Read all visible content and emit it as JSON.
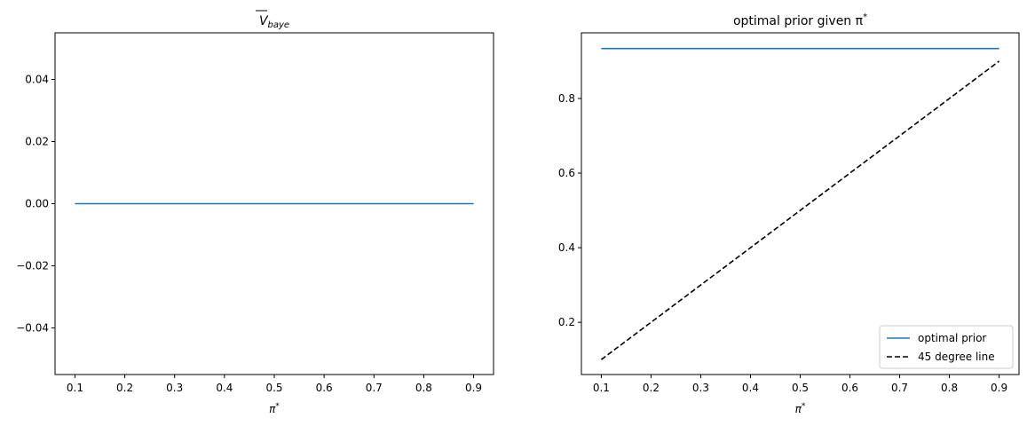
{
  "chart_data": [
    {
      "type": "line",
      "title": "V̄_baye",
      "title_main": "V",
      "title_sub": "baye",
      "xlabel": "π*",
      "xlabel_main": "π",
      "xlabel_sup": "*",
      "ylabel": "",
      "xlim": [
        0.06,
        0.94
      ],
      "ylim": [
        -0.055,
        0.055
      ],
      "xticks": [
        "0.1",
        "0.2",
        "0.3",
        "0.4",
        "0.5",
        "0.6",
        "0.7",
        "0.8",
        "0.9"
      ],
      "yticks": [
        "−0.04",
        "−0.02",
        "0.00",
        "0.02",
        "0.04"
      ],
      "ytick_values": [
        -0.04,
        -0.02,
        0,
        0.02,
        0.04
      ],
      "grid": false,
      "series": [
        {
          "color": "#1f77b4",
          "style": "solid",
          "x": [
            0.1,
            0.2,
            0.3,
            0.4,
            0.5,
            0.6,
            0.7,
            0.8,
            0.9
          ],
          "y": [
            0,
            0,
            0,
            0,
            0,
            0,
            0,
            0,
            0
          ]
        }
      ]
    },
    {
      "type": "line",
      "title": "optimal prior given π*",
      "title_main": "optimal prior given π",
      "title_sup": "*",
      "xlabel": "π*",
      "xlabel_main": "π",
      "xlabel_sup": "*",
      "ylabel": "",
      "xlim": [
        0.06,
        0.94
      ],
      "ylim": [
        0.06,
        0.976
      ],
      "xticks": [
        "0.1",
        "0.2",
        "0.3",
        "0.4",
        "0.5",
        "0.6",
        "0.7",
        "0.8",
        "0.9"
      ],
      "yticks": [
        "0.2",
        "0.4",
        "0.6",
        "0.8"
      ],
      "ytick_values": [
        0.2,
        0.4,
        0.6,
        0.8
      ],
      "grid": false,
      "legend": "lower-right",
      "series": [
        {
          "name": "optimal prior",
          "color": "#1f77b4",
          "style": "solid",
          "x": [
            0.1,
            0.2,
            0.3,
            0.4,
            0.5,
            0.6,
            0.7,
            0.8,
            0.9
          ],
          "y": [
            0.934,
            0.934,
            0.934,
            0.934,
            0.934,
            0.934,
            0.934,
            0.934,
            0.934
          ]
        },
        {
          "name": "45 degree line",
          "color": "#000000",
          "style": "dashed",
          "x": [
            0.1,
            0.2,
            0.3,
            0.4,
            0.5,
            0.6,
            0.7,
            0.8,
            0.9
          ],
          "y": [
            0.1,
            0.2,
            0.3,
            0.4,
            0.5,
            0.6,
            0.7,
            0.8,
            0.9
          ]
        }
      ]
    }
  ]
}
